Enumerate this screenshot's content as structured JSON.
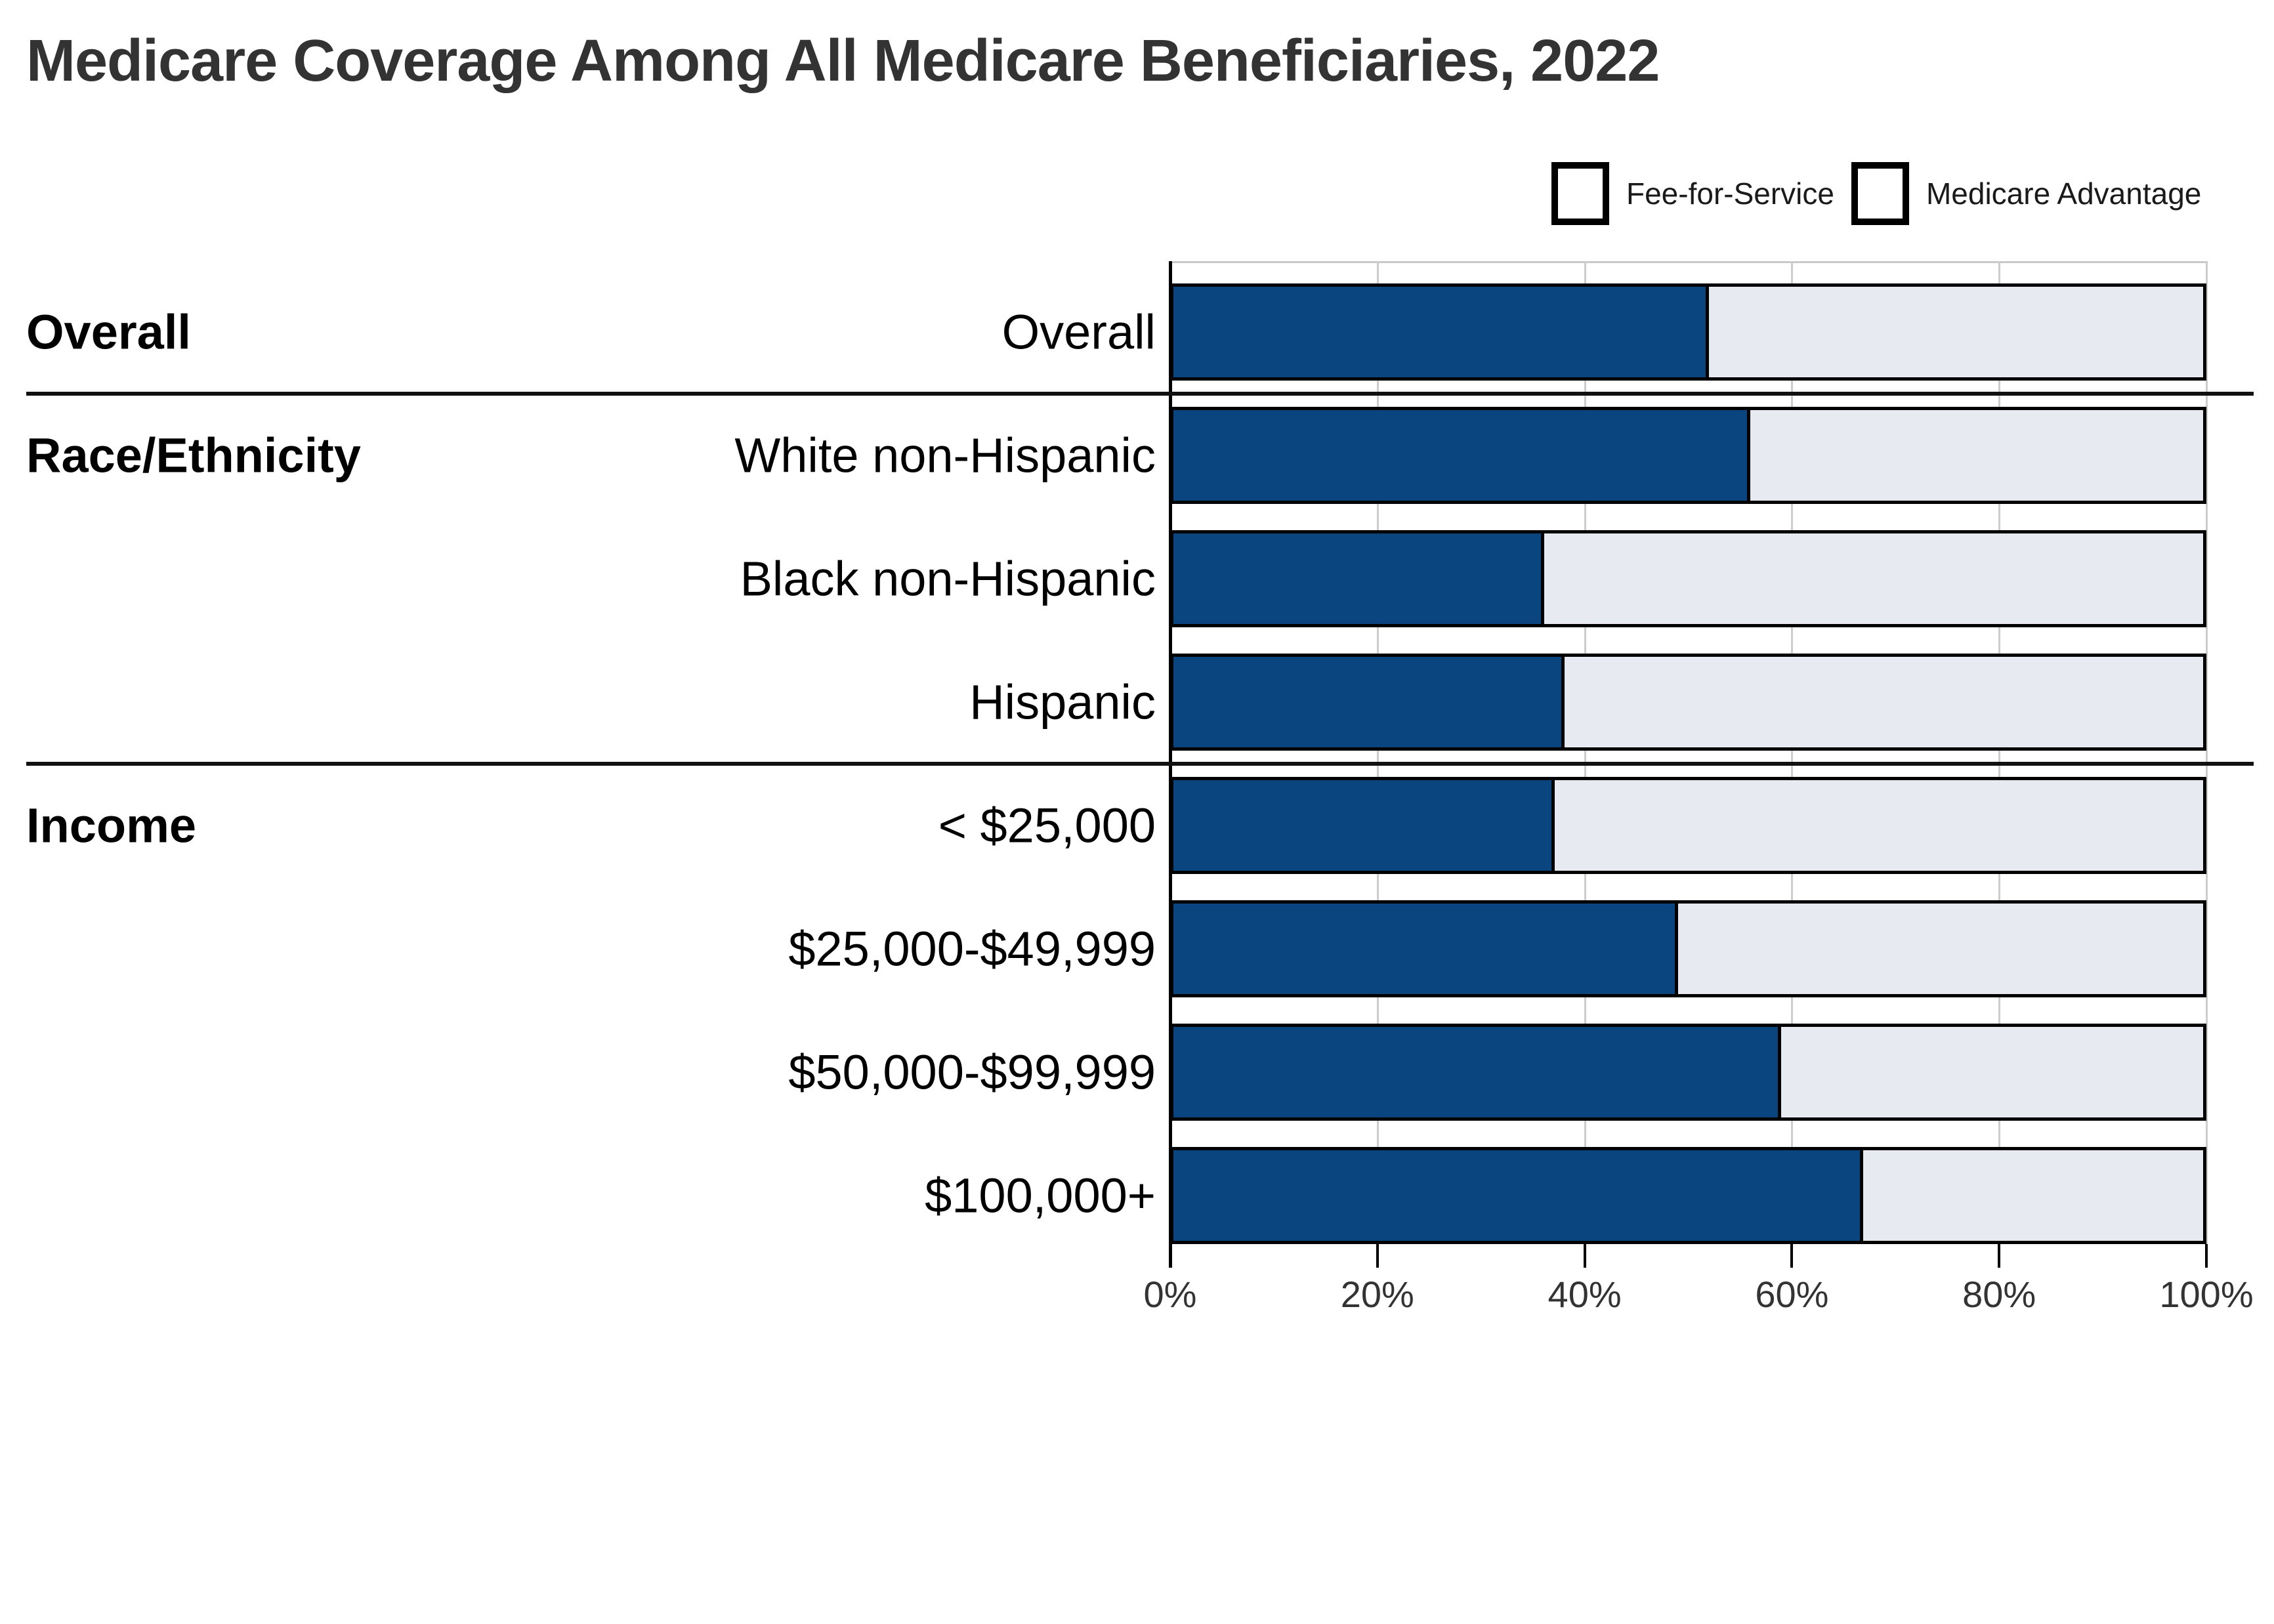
{
  "title": "Medicare Coverage Among All Medicare Beneficiaries, 2022",
  "colors": {
    "fee_for_service": "#0B4580",
    "medicare_advantage": "#E8EAF2",
    "bar_border": "#000000",
    "gridline": "#cccccc",
    "title_text": "#333333",
    "label_text": "#000000"
  },
  "legend": {
    "items": [
      {
        "label": "Fee-for-Service",
        "color": "#0B4580"
      },
      {
        "label": "Medicare Advantage",
        "color": "#E8EAF2"
      }
    ]
  },
  "chart_data": {
    "type": "bar",
    "orientation": "horizontal",
    "stacked": true,
    "title": "Medicare Coverage Among All Medicare Beneficiaries, 2022",
    "xlim": [
      0,
      100
    ],
    "x_tick_labels": [
      "0%",
      "20%",
      "40%",
      "60%",
      "80%",
      "100%"
    ],
    "x_tick_values": [
      0,
      20,
      40,
      60,
      80,
      100
    ],
    "grid": "vertical",
    "legend_position": "top-right",
    "sections": [
      {
        "header": "Overall",
        "row_indexes": [
          0
        ]
      },
      {
        "header": "Race/Ethnicity",
        "row_indexes": [
          1,
          2,
          3
        ]
      },
      {
        "header": "Income",
        "row_indexes": [
          4,
          5,
          6,
          7
        ]
      }
    ],
    "categories": [
      "Overall",
      "White non-Hispanic",
      "Black non-Hispanic",
      "Hispanic",
      "< $25,000",
      "$25,000-$49,999",
      "$50,000-$99,999",
      "$100,000+"
    ],
    "series": [
      {
        "name": "Fee-for-Service",
        "color": "#0B4580",
        "values": [
          52,
          56,
          36,
          38,
          37,
          49,
          59,
          67
        ]
      },
      {
        "name": "Medicare Advantage",
        "color": "#E8EAF2",
        "values": [
          48,
          44,
          64,
          62,
          63,
          51,
          41,
          33
        ]
      }
    ]
  }
}
